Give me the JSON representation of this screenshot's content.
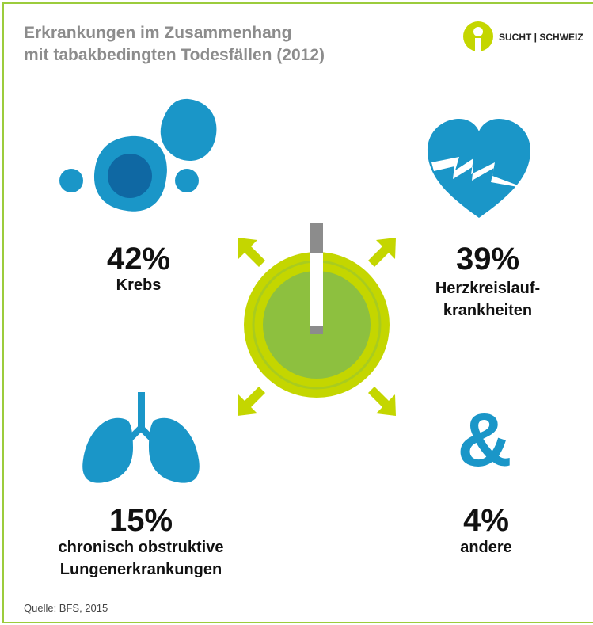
{
  "header": {
    "title": [
      "Erkrankungen im Zusammenhang",
      "mit tabakbedingten Todesfällen (2012)"
    ],
    "logo": "SUCHT | SCHWEIZ"
  },
  "items": [
    {
      "percent": "42%",
      "label": [
        "Krebs"
      ]
    },
    {
      "percent": "39%",
      "label": [
        "Herzkreislauf-",
        "krankheiten"
      ]
    },
    {
      "percent": "15%",
      "label": [
        "chronisch obstruktive",
        "Lungenerkrankungen"
      ]
    },
    {
      "percent": "4%",
      "label": [
        "andere"
      ],
      "icon": "&"
    }
  ],
  "source": "Quelle: BFS, 2015"
}
